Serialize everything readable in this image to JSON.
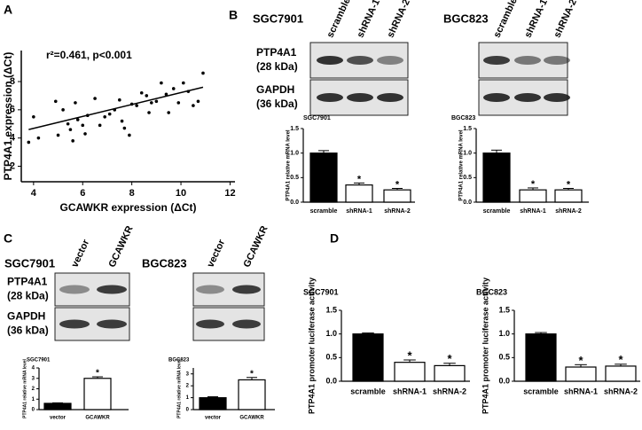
{
  "figure": {
    "panels": [
      "A",
      "B",
      "C",
      "D"
    ],
    "b_blots": {
      "lines": [
        {
          "title": "SGC7901",
          "lanes": [
            "scramble",
            "shRNA-1",
            "shRNA-2"
          ]
        },
        {
          "title": "BGC823",
          "lanes": [
            "scramble",
            "shRNA-1",
            "shRNA-2"
          ]
        }
      ],
      "rows": [
        {
          "name": "PTP4A1",
          "size": "(28 kDa)"
        },
        {
          "name": "GAPDH",
          "size": "(36 kDa)"
        }
      ]
    },
    "c_blots": {
      "lines": [
        {
          "title": "SGC7901",
          "lanes": [
            "vector",
            "GCAWKR"
          ]
        },
        {
          "title": "BGC823",
          "lanes": [
            "vector",
            "GCAWKR"
          ]
        }
      ],
      "rows": [
        {
          "name": "PTP4A1",
          "size": "(28 kDa)"
        },
        {
          "name": "GAPDH",
          "size": "(36 kDa)"
        }
      ]
    }
  },
  "chart_data": [
    {
      "type": "scatter",
      "annotation": "r²=0.461, p<0.001",
      "x_label": "GCAWKR expression (ΔCt)",
      "y_label": "PTP4A1 expression (ΔCt)",
      "x": [
        3.8,
        4.0,
        4.2,
        4.9,
        5.0,
        5.2,
        5.4,
        5.5,
        5.6,
        5.7,
        5.8,
        6.0,
        6.1,
        6.5,
        6.7,
        6.9,
        7.1,
        7.3,
        7.5,
        7.6,
        7.7,
        7.9,
        8.0,
        8.2,
        8.4,
        8.6,
        8.8,
        9.0,
        9.2,
        9.4,
        9.5,
        9.7,
        9.9,
        10.1,
        10.3,
        10.5,
        10.7,
        10.9,
        8.7,
        6.2
      ],
      "y": [
        3.7,
        5.5,
        4.0,
        6.6,
        4.2,
        6.0,
        5.0,
        4.6,
        3.8,
        6.5,
        5.3,
        4.9,
        4.3,
        6.8,
        4.9,
        5.5,
        5.7,
        6.0,
        6.7,
        5.2,
        4.7,
        4.2,
        6.4,
        6.3,
        7.2,
        7.0,
        6.5,
        6.6,
        7.9,
        7.1,
        5.8,
        7.5,
        6.5,
        7.9,
        7.3,
        6.3,
        6.6,
        8.6,
        5.8,
        5.6
      ],
      "fit_line": {
        "x": [
          3.8,
          10.9
        ],
        "y": [
          4.6,
          7.6
        ]
      },
      "color": "#000000",
      "xlim": [
        3.5,
        12.2
      ],
      "ylim": [
        0.9,
        10.2
      ],
      "xticks": [
        4,
        6,
        8,
        10,
        12
      ],
      "yticks": [
        2,
        4,
        6,
        8
      ]
    },
    {
      "type": "bar",
      "title": "SGC7901",
      "y_label": "PTP4A1 relative mRNA level",
      "categories": [
        "scramble",
        "shRNA-1",
        "shRNA-2"
      ],
      "values": [
        1.0,
        0.35,
        0.25
      ],
      "errors": [
        0.05,
        0.04,
        0.03
      ],
      "colors": [
        "#000000",
        "#ffffff",
        "#ffffff"
      ],
      "stars": [
        {
          "index": 1,
          "label": "*"
        },
        {
          "index": 2,
          "label": "*"
        }
      ],
      "ylim": [
        0,
        1.5
      ],
      "yticks": [
        {
          "value": 0,
          "label": "0.0"
        },
        {
          "value": 0.5,
          "label": "0.5"
        },
        {
          "value": 1,
          "label": "1.0"
        },
        {
          "value": 1.5,
          "label": "1.5"
        }
      ]
    },
    {
      "type": "bar",
      "title": "BGC823",
      "y_label": "PTP4A1 relative mRNA level",
      "categories": [
        "scramble",
        "shRNA-1",
        "shRNA-2"
      ],
      "values": [
        1.0,
        0.25,
        0.25
      ],
      "errors": [
        0.06,
        0.04,
        0.03
      ],
      "colors": [
        "#000000",
        "#ffffff",
        "#ffffff"
      ],
      "stars": [
        {
          "index": 1,
          "label": "*"
        },
        {
          "index": 2,
          "label": "*"
        }
      ],
      "ylim": [
        0,
        1.5
      ],
      "yticks": [
        {
          "value": 0,
          "label": "0.0"
        },
        {
          "value": 0.5,
          "label": "0.5"
        },
        {
          "value": 1,
          "label": "1.0"
        },
        {
          "value": 1.5,
          "label": "1.5"
        }
      ]
    },
    {
      "type": "bar",
      "title": "SGC7901",
      "y_label": "PTP4A1 relative mRNA level",
      "categories": [
        "vector",
        "GCAWKR"
      ],
      "values": [
        0.6,
        3.0
      ],
      "errors": [
        0.05,
        0.15
      ],
      "colors": [
        "#000000",
        "#ffffff"
      ],
      "stars": [
        {
          "index": 1,
          "label": "*"
        }
      ],
      "ylim": [
        0,
        4
      ],
      "yticks": [
        0,
        1,
        2,
        3,
        4
      ]
    },
    {
      "type": "bar",
      "title": "BGC823",
      "y_label": "PTP4A1 relative mRNA level",
      "categories": [
        "vector",
        "GCAWKR"
      ],
      "values": [
        1.0,
        2.5
      ],
      "errors": [
        0.08,
        0.2
      ],
      "colors": [
        "#000000",
        "#ffffff"
      ],
      "stars": [
        {
          "index": 1,
          "label": "*"
        }
      ],
      "ylim": [
        0,
        3.5
      ],
      "yticks": [
        0,
        1,
        2,
        3
      ]
    },
    {
      "type": "bar",
      "title": "SGC7901",
      "y_label": "PTP4A1 promoter luciferase activity",
      "categories": [
        "scramble",
        "shRNA-1",
        "shRNA-2"
      ],
      "values": [
        1.0,
        0.4,
        0.33
      ],
      "errors": [
        0.02,
        0.05,
        0.05
      ],
      "colors": [
        "#000000",
        "#ffffff",
        "#ffffff"
      ],
      "stars": [
        {
          "index": 1,
          "label": "*"
        },
        {
          "index": 2,
          "label": "*"
        }
      ],
      "ylim": [
        0,
        1.5
      ],
      "yticks": [
        {
          "value": 0,
          "label": "0.0"
        },
        {
          "value": 0.5,
          "label": "0.5"
        },
        {
          "value": 1,
          "label": "1.0"
        },
        {
          "value": 1.5,
          "label": "1.5"
        }
      ]
    },
    {
      "type": "bar",
      "title": "BGC823",
      "y_label": "PTP4A1 promoter luciferase activity",
      "categories": [
        "scramble",
        "shRNA-1",
        "shRNA-2"
      ],
      "values": [
        1.0,
        0.3,
        0.32
      ],
      "errors": [
        0.03,
        0.05,
        0.04
      ],
      "colors": [
        "#000000",
        "#ffffff",
        "#ffffff"
      ],
      "stars": [
        {
          "index": 1,
          "label": "*"
        },
        {
          "index": 2,
          "label": "*"
        }
      ],
      "ylim": [
        0,
        1.5
      ],
      "yticks": [
        {
          "value": 0,
          "label": "0.0"
        },
        {
          "value": 0.5,
          "label": "0.5"
        },
        {
          "value": 1,
          "label": "1.0"
        },
        {
          "value": 1.5,
          "label": "1.5"
        }
      ]
    }
  ]
}
